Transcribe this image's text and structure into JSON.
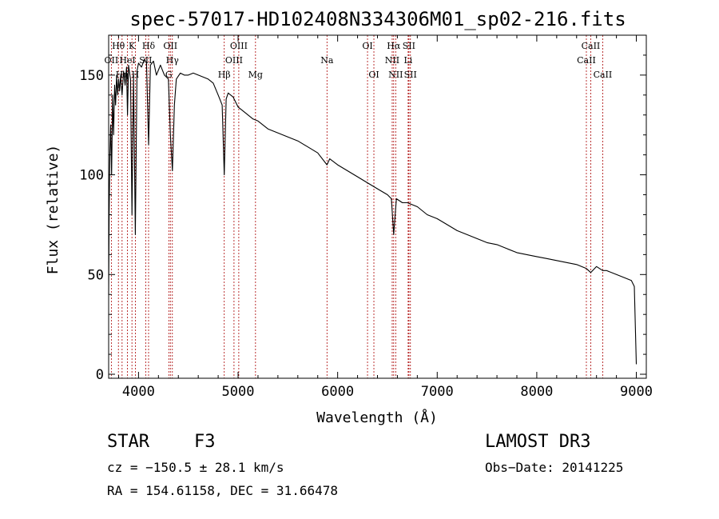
{
  "chart_data": {
    "type": "line",
    "title": "spec-57017-HD102408N334306M01_sp02-216.fits",
    "xlabel": "Wavelength (Å)",
    "ylabel": "Flux (relative)",
    "xlim": [
      3700,
      9100
    ],
    "ylim": [
      -2,
      170
    ],
    "xticks": [
      4000,
      5000,
      6000,
      7000,
      8000,
      9000
    ],
    "yticks": [
      0,
      50,
      100,
      150
    ],
    "grid": false,
    "series": [
      {
        "name": "spectrum",
        "x": [
          3700,
          3705,
          3712,
          3720,
          3730,
          3740,
          3750,
          3760,
          3770,
          3780,
          3790,
          3800,
          3810,
          3820,
          3835,
          3850,
          3865,
          3880,
          3889,
          3900,
          3920,
          3934,
          3950,
          3968,
          3985,
          4000,
          4030,
          4060,
          4080,
          4101,
          4120,
          4150,
          4180,
          4220,
          4260,
          4300,
          4320,
          4340,
          4360,
          4380,
          4420,
          4460,
          4500,
          4550,
          4600,
          4650,
          4700,
          4750,
          4800,
          4840,
          4861,
          4880,
          4900,
          4950,
          5000,
          5050,
          5100,
          5150,
          5200,
          5300,
          5400,
          5500,
          5600,
          5700,
          5800,
          5893,
          5920,
          6000,
          6100,
          6200,
          6300,
          6400,
          6500,
          6540,
          6563,
          6590,
          6650,
          6700,
          6800,
          6900,
          7000,
          7100,
          7200,
          7300,
          7400,
          7500,
          7600,
          7700,
          7800,
          7900,
          8000,
          8100,
          8200,
          8300,
          8400,
          8498,
          8542,
          8600,
          8662,
          8700,
          8800,
          8900,
          8950,
          8980,
          9000
        ],
        "y": [
          40,
          80,
          110,
          125,
          100,
          140,
          120,
          145,
          135,
          150,
          140,
          148,
          142,
          150,
          140,
          152,
          145,
          154,
          130,
          155,
          148,
          80,
          150,
          70,
          152,
          156,
          154,
          158,
          156,
          115,
          155,
          157,
          150,
          155,
          150,
          148,
          120,
          102,
          135,
          148,
          151,
          150,
          150,
          151,
          150,
          149,
          148,
          146,
          140,
          135,
          100,
          138,
          141,
          139,
          134,
          132,
          130,
          128,
          127,
          123,
          121,
          119,
          117,
          114,
          111,
          105,
          108,
          105,
          102,
          99,
          96,
          93,
          90,
          88,
          70,
          88,
          86,
          86,
          84,
          80,
          78,
          75,
          72,
          70,
          68,
          66,
          65,
          63,
          61,
          60,
          59,
          58,
          57,
          56,
          55,
          53,
          51,
          54,
          52,
          52,
          50,
          48,
          47,
          44,
          5
        ]
      }
    ],
    "lines": [
      {
        "name": "OII",
        "wave": 3727,
        "row": 1
      },
      {
        "name": "Hθ",
        "wave": 3798,
        "row": 0
      },
      {
        "name": "Hη",
        "wave": 3835,
        "row": 2
      },
      {
        "name": "HeI",
        "wave": 3889,
        "row": 1
      },
      {
        "name": "K",
        "wave": 3934,
        "row": 0
      },
      {
        "name": "H",
        "wave": 3968,
        "row": 2
      },
      {
        "name": "SII",
        "wave": 4072,
        "row": 1
      },
      {
        "name": "Hδ",
        "wave": 4101,
        "row": 0
      },
      {
        "name": "G",
        "wave": 4304,
        "row": 2
      },
      {
        "name": "OII",
        "wave": 4320,
        "row": 0
      },
      {
        "name": "Hγ",
        "wave": 4340,
        "row": 1
      },
      {
        "name": "Hβ",
        "wave": 4861,
        "row": 2
      },
      {
        "name": "OIII",
        "wave": 4959,
        "row": 1
      },
      {
        "name": "OIII",
        "wave": 5007,
        "row": 0
      },
      {
        "name": "Mg",
        "wave": 5175,
        "row": 2
      },
      {
        "name": "Na",
        "wave": 5893,
        "row": 1
      },
      {
        "name": "OI",
        "wave": 6300,
        "row": 0
      },
      {
        "name": "OI",
        "wave": 6364,
        "row": 2
      },
      {
        "name": "NII",
        "wave": 6548,
        "row": 1
      },
      {
        "name": "Hα",
        "wave": 6563,
        "row": 0
      },
      {
        "name": "NII",
        "wave": 6583,
        "row": 2
      },
      {
        "name": "Li",
        "wave": 6708,
        "row": 1
      },
      {
        "name": "SII",
        "wave": 6716,
        "row": 0
      },
      {
        "name": "SII",
        "wave": 6731,
        "row": 2
      },
      {
        "name": "CaII",
        "wave": 8498,
        "row": 1
      },
      {
        "name": "CaII",
        "wave": 8542,
        "row": 0
      },
      {
        "name": "CaII",
        "wave": 8662,
        "row": 2
      }
    ]
  },
  "info": {
    "class_label": "STAR",
    "subclass": "F3",
    "survey": "LAMOST DR3",
    "cz": "cz = −150.5 ± 28.1 km/s",
    "obs_date": "Obs−Date: 20141225",
    "coords": "RA = 154.61158, DEC =  31.66478"
  },
  "colors": {
    "line_marker": "#aa0000",
    "spectrum": "#000000"
  }
}
